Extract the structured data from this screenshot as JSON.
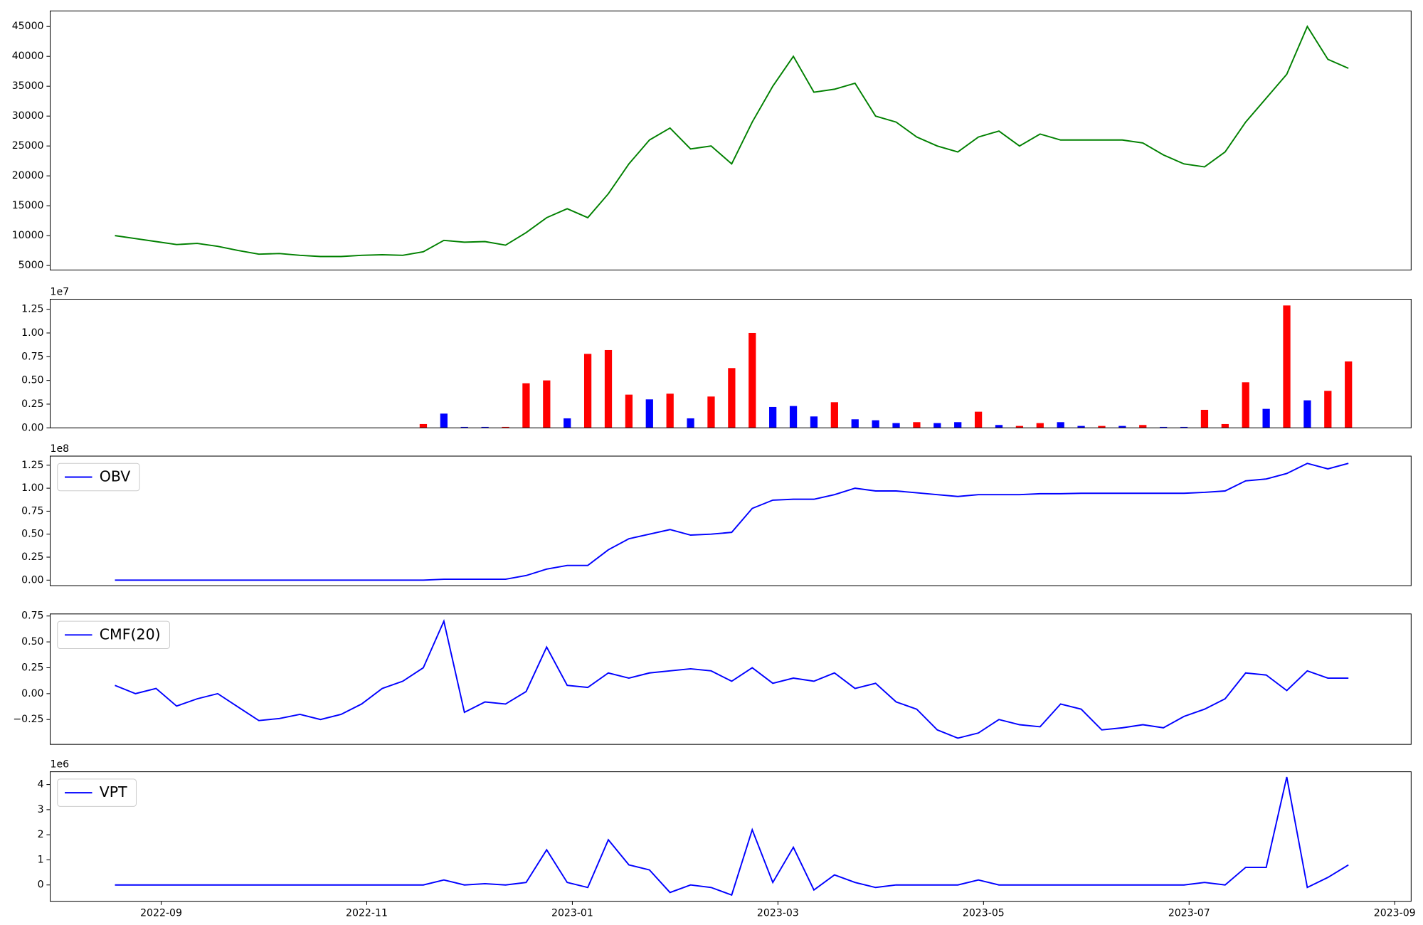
{
  "chart_data": [
    {
      "type": "line",
      "color": "green",
      "xlim": [
        7.92,
        21.16
      ],
      "ylim": [
        4240,
        47600
      ],
      "yticks": [
        5000,
        10000,
        15000,
        20000,
        25000,
        30000,
        35000,
        40000,
        45000
      ],
      "x": [
        8.55,
        8.75,
        8.95,
        9.15,
        9.35,
        9.55,
        9.75,
        9.95,
        10.15,
        10.35,
        10.55,
        10.75,
        10.95,
        11.15,
        11.35,
        11.55,
        11.75,
        11.95,
        12.15,
        12.35,
        12.55,
        12.75,
        12.95,
        13.15,
        13.35,
        13.55,
        13.75,
        13.95,
        14.15,
        14.35,
        14.55,
        14.75,
        14.95,
        15.15,
        15.35,
        15.55,
        15.75,
        15.95,
        16.15,
        16.35,
        16.55,
        16.75,
        16.95,
        17.15,
        17.35,
        17.55,
        17.75,
        17.95,
        18.15,
        18.35,
        18.55,
        18.75,
        18.95,
        19.15,
        19.35,
        19.55,
        19.75,
        19.95,
        20.15,
        20.35,
        20.55
      ],
      "values": [
        10000,
        9500,
        9000,
        8500,
        8700,
        8200,
        7500,
        6900,
        7000,
        6700,
        6500,
        6500,
        6700,
        6800,
        6700,
        7300,
        9200,
        8900,
        9000,
        8400,
        10500,
        13000,
        14500,
        13000,
        17000,
        22000,
        26000,
        28000,
        24500,
        25000,
        22000,
        29000,
        35000,
        40000,
        34000,
        34500,
        35500,
        30000,
        29000,
        26500,
        25000,
        24000,
        26500,
        27500,
        25000,
        27000,
        26000,
        26000,
        26000,
        26000,
        25500,
        23500,
        22000,
        21500,
        24000,
        29000,
        33000,
        37000,
        45000,
        39500,
        38000
      ]
    },
    {
      "type": "bar",
      "xlim": [
        7.92,
        21.16
      ],
      "ylim": [
        0,
        13560000
      ],
      "y_offset_label": "1e7",
      "yticks": [
        {
          "value": 0,
          "label": "0.00"
        },
        {
          "value": 2500000,
          "label": "0.25"
        },
        {
          "value": 5000000,
          "label": "0.50"
        },
        {
          "value": 7500000,
          "label": "0.75"
        },
        {
          "value": 10000000,
          "label": "1.00"
        },
        {
          "value": 12500000,
          "label": "1.25"
        }
      ],
      "x": [
        8.55,
        8.75,
        8.95,
        9.15,
        9.35,
        9.55,
        9.75,
        9.95,
        10.15,
        10.35,
        10.55,
        10.75,
        10.95,
        11.15,
        11.35,
        11.55,
        11.75,
        11.95,
        12.15,
        12.35,
        12.55,
        12.75,
        12.95,
        13.15,
        13.35,
        13.55,
        13.75,
        13.95,
        14.15,
        14.35,
        14.55,
        14.75,
        14.95,
        15.15,
        15.35,
        15.55,
        15.75,
        15.95,
        16.15,
        16.35,
        16.55,
        16.75,
        16.95,
        17.15,
        17.35,
        17.55,
        17.75,
        17.95,
        18.15,
        18.35,
        18.55,
        18.75,
        18.95,
        19.15,
        19.35,
        19.55,
        19.75,
        19.95,
        20.15,
        20.35,
        20.55
      ],
      "values": [
        0,
        0,
        0,
        0,
        0,
        0,
        0,
        0,
        0,
        0,
        0,
        0,
        0,
        0,
        0,
        400000,
        1500000,
        100000,
        100000,
        100000,
        4700000,
        5000000,
        1000000,
        7800000,
        8200000,
        3500000,
        3000000,
        3600000,
        1000000,
        3300000,
        6300000,
        10000000,
        2200000,
        2300000,
        1200000,
        2700000,
        900000,
        800000,
        500000,
        600000,
        500000,
        600000,
        1700000,
        300000,
        200000,
        500000,
        600000,
        200000,
        200000,
        200000,
        300000,
        100000,
        100000,
        1900000,
        400000,
        4800000,
        2000000,
        12900000,
        2900000,
        3900000,
        7000000
      ],
      "colors": [
        "red",
        "red",
        "red",
        "red",
        "red",
        "red",
        "red",
        "red",
        "red",
        "red",
        "red",
        "red",
        "red",
        "red",
        "red",
        "red",
        "blue",
        "blue",
        "blue",
        "red",
        "red",
        "red",
        "blue",
        "red",
        "red",
        "red",
        "blue",
        "red",
        "blue",
        "red",
        "red",
        "red",
        "blue",
        "blue",
        "blue",
        "red",
        "blue",
        "blue",
        "blue",
        "red",
        "blue",
        "blue",
        "red",
        "blue",
        "red",
        "red",
        "blue",
        "blue",
        "red",
        "blue",
        "red",
        "blue",
        "blue",
        "red",
        "red",
        "red",
        "blue",
        "red",
        "blue",
        "red",
        "red"
      ]
    },
    {
      "type": "line",
      "xlim": [
        7.92,
        21.16
      ],
      "ylim": [
        -6000000,
        134900000
      ],
      "y_offset_label": "1e8",
      "legend": "upper left",
      "yticks": [
        {
          "value": 0,
          "label": "0.00"
        },
        {
          "value": 25000000,
          "label": "0.25"
        },
        {
          "value": 50000000,
          "label": "0.50"
        },
        {
          "value": 75000000,
          "label": "0.75"
        },
        {
          "value": 100000000,
          "label": "1.00"
        },
        {
          "value": 125000000,
          "label": "1.25"
        }
      ],
      "x": [
        8.55,
        8.75,
        8.95,
        9.15,
        9.35,
        9.55,
        9.75,
        9.95,
        10.15,
        10.35,
        10.55,
        10.75,
        10.95,
        11.15,
        11.35,
        11.55,
        11.75,
        11.95,
        12.15,
        12.35,
        12.55,
        12.75,
        12.95,
        13.15,
        13.35,
        13.55,
        13.75,
        13.95,
        14.15,
        14.35,
        14.55,
        14.75,
        14.95,
        15.15,
        15.35,
        15.55,
        15.75,
        15.95,
        16.15,
        16.35,
        16.55,
        16.75,
        16.95,
        17.15,
        17.35,
        17.55,
        17.75,
        17.95,
        18.15,
        18.35,
        18.55,
        18.75,
        18.95,
        19.15,
        19.35,
        19.55,
        19.75,
        19.95,
        20.15,
        20.35,
        20.55
      ],
      "series": [
        {
          "name": "OBV",
          "color": "blue",
          "values": [
            0,
            0,
            0,
            0,
            0,
            0,
            0,
            0,
            0,
            0,
            0,
            0,
            0,
            0,
            0,
            0,
            1000000,
            1000000,
            1000000,
            1000000,
            5000000,
            12000000,
            16000000,
            16000000,
            33000000,
            45000000,
            50000000,
            55000000,
            49000000,
            50000000,
            52000000,
            78000000,
            87000000,
            88000000,
            88000000,
            93000000,
            100000000,
            97000000,
            97000000,
            95000000,
            93000000,
            91000000,
            93000000,
            93000000,
            93000000,
            94000000,
            94000000,
            94500000,
            94500000,
            94500000,
            94500000,
            94500000,
            94500000,
            95500000,
            97000000,
            108000000,
            110000000,
            116000000,
            127000000,
            121000000,
            127000000
          ]
        }
      ]
    },
    {
      "type": "line",
      "xlim": [
        7.92,
        21.16
      ],
      "ylim": [
        -0.49,
        0.77
      ],
      "legend": "upper left",
      "yticks": [
        {
          "value": -0.25,
          "label": "−0.25"
        },
        {
          "value": 0,
          "label": "0.00"
        },
        {
          "value": 0.25,
          "label": "0.25"
        },
        {
          "value": 0.5,
          "label": "0.50"
        },
        0.75
      ],
      "x": [
        8.55,
        8.75,
        8.95,
        9.15,
        9.35,
        9.55,
        9.75,
        9.95,
        10.15,
        10.35,
        10.55,
        10.75,
        10.95,
        11.15,
        11.35,
        11.55,
        11.75,
        11.95,
        12.15,
        12.35,
        12.55,
        12.75,
        12.95,
        13.15,
        13.35,
        13.55,
        13.75,
        13.95,
        14.15,
        14.35,
        14.55,
        14.75,
        14.95,
        15.15,
        15.35,
        15.55,
        15.75,
        15.95,
        16.15,
        16.35,
        16.55,
        16.75,
        16.95,
        17.15,
        17.35,
        17.55,
        17.75,
        17.95,
        18.15,
        18.35,
        18.55,
        18.75,
        18.95,
        19.15,
        19.35,
        19.55,
        19.75,
        19.95,
        20.15,
        20.35,
        20.55
      ],
      "series": [
        {
          "name": "CMF(20)",
          "color": "blue",
          "values": [
            0.08,
            0,
            0.05,
            -0.12,
            -0.05,
            0,
            -0.13,
            -0.26,
            -0.24,
            -0.2,
            -0.25,
            -0.2,
            -0.1,
            0.05,
            0.12,
            0.25,
            0.7,
            -0.18,
            -0.08,
            -0.1,
            0.02,
            0.45,
            0.08,
            0.06,
            0.2,
            0.15,
            0.2,
            0.22,
            0.24,
            0.22,
            0.12,
            0.25,
            0.1,
            0.15,
            0.12,
            0.2,
            0.05,
            0.1,
            -0.08,
            -0.15,
            -0.35,
            -0.43,
            -0.38,
            -0.25,
            -0.3,
            -0.32,
            -0.1,
            -0.15,
            -0.35,
            -0.33,
            -0.3,
            -0.33,
            -0.22,
            -0.15,
            -0.05,
            0.2,
            0.18,
            0.03,
            0.22,
            0.15,
            0.15
          ]
        }
      ]
    },
    {
      "type": "line",
      "xlim": [
        7.92,
        21.16
      ],
      "ylim": [
        -650000,
        4510000
      ],
      "y_offset_label": "1e6",
      "legend": "upper left",
      "yticks": [
        {
          "value": 0,
          "label": "0"
        },
        {
          "value": 1000000,
          "label": "1"
        },
        {
          "value": 2000000,
          "label": "2"
        },
        {
          "value": 3000000,
          "label": "3"
        },
        {
          "value": 4000000,
          "label": "4"
        }
      ],
      "xticks": [
        {
          "value": 9,
          "label": "2022-09"
        },
        {
          "value": 11,
          "label": "2022-11"
        },
        {
          "value": 13,
          "label": "2023-01"
        },
        {
          "value": 15,
          "label": "2023-03"
        },
        {
          "value": 17,
          "label": "2023-05"
        },
        {
          "value": 19,
          "label": "2023-07"
        },
        {
          "value": 21,
          "label": "2023-09"
        }
      ],
      "x": [
        8.55,
        8.75,
        8.95,
        9.15,
        9.35,
        9.55,
        9.75,
        9.95,
        10.15,
        10.35,
        10.55,
        10.75,
        10.95,
        11.15,
        11.35,
        11.55,
        11.75,
        11.95,
        12.15,
        12.35,
        12.55,
        12.75,
        12.95,
        13.15,
        13.35,
        13.55,
        13.75,
        13.95,
        14.15,
        14.35,
        14.55,
        14.75,
        14.95,
        15.15,
        15.35,
        15.55,
        15.75,
        15.95,
        16.15,
        16.35,
        16.55,
        16.75,
        16.95,
        17.15,
        17.35,
        17.55,
        17.75,
        17.95,
        18.15,
        18.35,
        18.55,
        18.75,
        18.95,
        19.15,
        19.35,
        19.55,
        19.75,
        19.95,
        20.15,
        20.35,
        20.55
      ],
      "series": [
        {
          "name": "VPT",
          "color": "blue",
          "values": [
            0,
            0,
            0,
            0,
            0,
            0,
            0,
            0,
            0,
            0,
            0,
            0,
            0,
            0,
            0,
            0,
            200000,
            0,
            50000,
            0,
            100000,
            1400000,
            100000,
            -100000,
            1800000,
            800000,
            600000,
            -300000,
            0,
            -100000,
            -400000,
            2200000,
            100000,
            1500000,
            -200000,
            400000,
            100000,
            -100000,
            0,
            0,
            0,
            0,
            200000,
            0,
            0,
            0,
            0,
            0,
            0,
            0,
            0,
            0,
            0,
            100000,
            0,
            700000,
            700000,
            4300000,
            -100000,
            300000,
            800000
          ]
        }
      ]
    }
  ]
}
